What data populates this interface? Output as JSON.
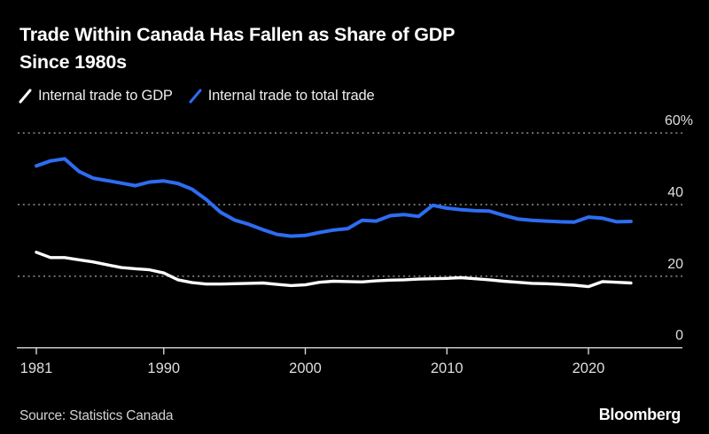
{
  "title": {
    "line1": "Trade Within Canada Has Fallen as Share of GDP",
    "line2": "Since 1980s",
    "full": "Trade Within Canada Has Fallen as Share of GDP Since 1980s"
  },
  "legend": [
    {
      "label": "Internal trade to GDP",
      "color": "#ffffff"
    },
    {
      "label": "Internal trade to total trade",
      "color": "#2e6cf2"
    }
  ],
  "source": {
    "text": "Source: Statistics Canada"
  },
  "brand": "Bloomberg",
  "colors": {
    "background": "#000000",
    "title_text": "#ffffff",
    "legend_text": "#ececec",
    "axis_label": "#dedede",
    "gridline": "#8f8f8f",
    "axis_line": "#d6d6d6",
    "series_gdp": "#ffffff",
    "series_total_trade": "#2e6cf2"
  },
  "chart_data": {
    "type": "line",
    "title": "Trade Within Canada Has Fallen as Share of GDP Since 1980s",
    "xlabel": "",
    "ylabel": "%",
    "x_range": [
      1981,
      2023
    ],
    "ylim": [
      0,
      60
    ],
    "grid": "horizontal-dotted",
    "legend_position": "top-left",
    "y_axis_side": "right",
    "y_ticks": [
      {
        "value": 0,
        "label": "0"
      },
      {
        "value": 20,
        "label": "20"
      },
      {
        "value": 40,
        "label": "40"
      },
      {
        "value": 60,
        "label": "60%"
      }
    ],
    "x_ticks": [
      {
        "value": 1981,
        "label": "1981"
      },
      {
        "value": 1990,
        "label": "1990"
      },
      {
        "value": 2000,
        "label": "2000"
      },
      {
        "value": 2010,
        "label": "2010"
      },
      {
        "value": 2020,
        "label": "2020"
      }
    ],
    "x": [
      1981,
      1982,
      1983,
      1984,
      1985,
      1986,
      1987,
      1988,
      1989,
      1990,
      1991,
      1992,
      1993,
      1994,
      1995,
      1996,
      1997,
      1998,
      1999,
      2000,
      2001,
      2002,
      2003,
      2004,
      2005,
      2006,
      2007,
      2008,
      2009,
      2010,
      2011,
      2012,
      2013,
      2014,
      2015,
      2016,
      2017,
      2018,
      2019,
      2020,
      2021,
      2022,
      2023
    ],
    "series": [
      {
        "name": "Internal trade to GDP",
        "color": "#ffffff",
        "values": [
          26.7,
          25.2,
          25.2,
          24.6,
          24.0,
          23.2,
          22.4,
          22.1,
          21.8,
          20.9,
          19.0,
          18.2,
          17.8,
          17.8,
          17.9,
          18.0,
          18.1,
          17.7,
          17.4,
          17.6,
          18.3,
          18.6,
          18.5,
          18.4,
          18.7,
          18.9,
          19.0,
          19.2,
          19.3,
          19.4,
          19.6,
          19.3,
          19.0,
          18.6,
          18.3,
          18.0,
          17.9,
          17.7,
          17.5,
          17.1,
          18.5,
          18.3,
          18.1
        ]
      },
      {
        "name": "Internal trade to total trade",
        "color": "#2e6cf2",
        "values": [
          50.8,
          52.2,
          52.8,
          49.3,
          47.4,
          46.7,
          46.0,
          45.3,
          46.3,
          46.6,
          45.9,
          44.3,
          41.4,
          37.9,
          35.7,
          34.5,
          33.0,
          31.7,
          31.2,
          31.4,
          32.2,
          32.9,
          33.3,
          35.6,
          35.4,
          36.9,
          37.2,
          36.7,
          39.8,
          39.0,
          38.6,
          38.3,
          38.2,
          37.0,
          36.0,
          35.6,
          35.4,
          35.2,
          35.1,
          36.5,
          36.2,
          35.2,
          35.3
        ]
      }
    ]
  }
}
